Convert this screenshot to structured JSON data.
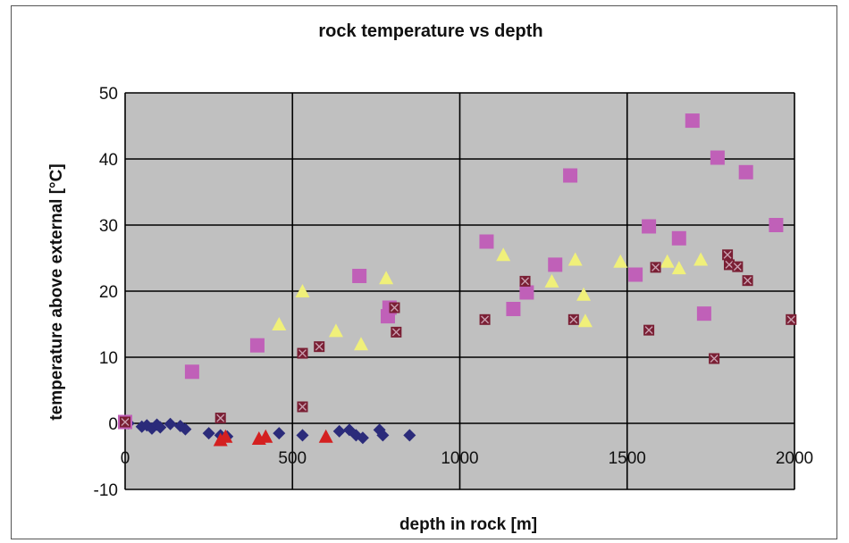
{
  "chart_data": {
    "type": "scatter",
    "title": "rock temperature vs depth",
    "xlabel": "depth in rock [m]",
    "ylabel": "temperature above external [°C]",
    "xlim": [
      0,
      2000
    ],
    "ylim": [
      -10,
      50
    ],
    "x_ticks": [
      0,
      500,
      1000,
      1500,
      2000
    ],
    "y_ticks": [
      -10,
      0,
      10,
      20,
      30,
      40,
      50
    ],
    "grid": true,
    "legend": "none",
    "colors": {
      "plot_background": "#c0c0c0",
      "gridline": "#000000",
      "frame": "#555555"
    },
    "series": [
      {
        "marker": "diamond",
        "color": "#2b2b7a",
        "points": [
          [
            10,
            0
          ],
          [
            50,
            -0.5
          ],
          [
            65,
            -0.3
          ],
          [
            80,
            -0.8
          ],
          [
            95,
            -0.2
          ],
          [
            105,
            -0.6
          ],
          [
            135,
            -0.1
          ],
          [
            165,
            -0.4
          ],
          [
            180,
            -0.9
          ],
          [
            250,
            -1.5
          ],
          [
            285,
            -1.8
          ],
          [
            305,
            -2.0
          ],
          [
            460,
            -1.5
          ],
          [
            530,
            -1.8
          ],
          [
            640,
            -1.2
          ],
          [
            670,
            -1.0
          ],
          [
            690,
            -1.8
          ],
          [
            710,
            -2.2
          ],
          [
            760,
            -1.0
          ],
          [
            770,
            -1.8
          ],
          [
            850,
            -1.8
          ]
        ]
      },
      {
        "marker": "triangle",
        "color": "#d42020",
        "points": [
          [
            285,
            -2.5
          ],
          [
            300,
            -2.0
          ],
          [
            400,
            -2.3
          ],
          [
            420,
            -2.0
          ],
          [
            600,
            -2.0
          ]
        ]
      },
      {
        "marker": "square",
        "color": "#c060b8",
        "points": [
          [
            0,
            0.2
          ],
          [
            200,
            7.8
          ],
          [
            395,
            11.8
          ],
          [
            700,
            22.3
          ],
          [
            785,
            16.2
          ],
          [
            790,
            17.5
          ],
          [
            1080,
            27.5
          ],
          [
            1160,
            17.3
          ],
          [
            1200,
            19.8
          ],
          [
            1285,
            24.0
          ],
          [
            1330,
            37.5
          ],
          [
            1525,
            22.5
          ],
          [
            1565,
            29.8
          ],
          [
            1655,
            28.0
          ],
          [
            1695,
            45.8
          ],
          [
            1730,
            16.6
          ],
          [
            1770,
            40.2
          ],
          [
            1855,
            38.0
          ],
          [
            1945,
            30.0
          ]
        ]
      },
      {
        "marker": "triangle",
        "color": "#f0f07a",
        "points": [
          [
            460,
            15.0
          ],
          [
            530,
            20.0
          ],
          [
            630,
            14.0
          ],
          [
            705,
            12.0
          ],
          [
            780,
            22.0
          ],
          [
            1130,
            25.5
          ],
          [
            1275,
            21.5
          ],
          [
            1345,
            24.8
          ],
          [
            1370,
            19.5
          ],
          [
            1375,
            15.5
          ],
          [
            1480,
            24.5
          ],
          [
            1620,
            24.5
          ],
          [
            1655,
            23.5
          ],
          [
            1720,
            24.8
          ]
        ]
      },
      {
        "marker": "x-square",
        "color": "#7a1f34",
        "points": [
          [
            0,
            0.2
          ],
          [
            285,
            0.8
          ],
          [
            530,
            2.5
          ],
          [
            530,
            10.6
          ],
          [
            580,
            11.6
          ],
          [
            805,
            17.5
          ],
          [
            810,
            13.8
          ],
          [
            1075,
            15.7
          ],
          [
            1195,
            21.5
          ],
          [
            1340,
            15.7
          ],
          [
            1565,
            14.1
          ],
          [
            1585,
            23.6
          ],
          [
            1760,
            9.8
          ],
          [
            1800,
            25.5
          ],
          [
            1805,
            24.0
          ],
          [
            1830,
            23.7
          ],
          [
            1860,
            21.6
          ],
          [
            1990,
            15.7
          ]
        ]
      }
    ]
  }
}
